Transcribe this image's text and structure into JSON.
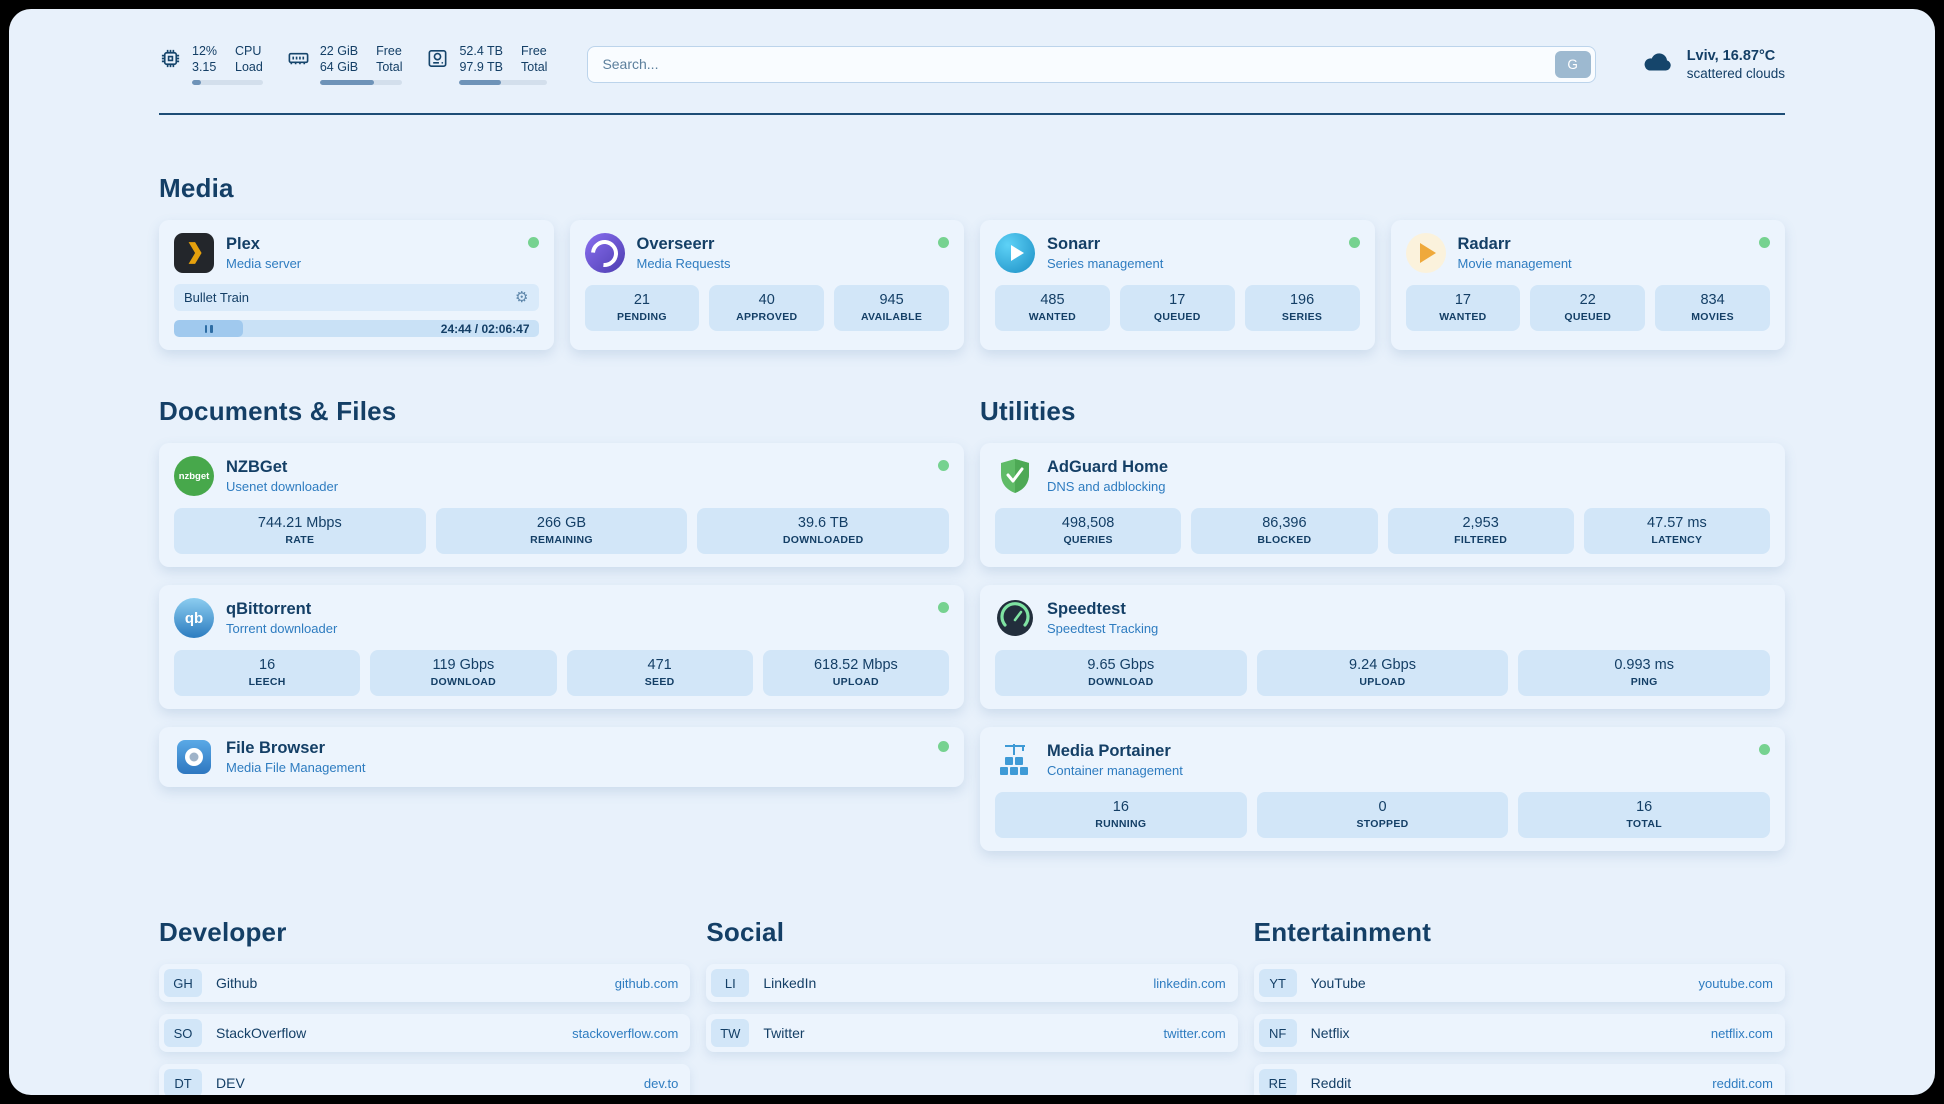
{
  "colors": {
    "page_bg": "#e8f1fb",
    "card_bg": "#ecf4fd",
    "tile_bg": "#d2e6f8",
    "text_dark": "#143f66",
    "subtitle_blue": "#2e7cc0",
    "link_blue": "#2e7cc0",
    "status_green": "#76d290",
    "progress_fill": "#6e93b8",
    "media_fill": "#a0c9ee"
  },
  "icons": {
    "gear": "⚙",
    "nzbget_logo_text": "nzbget",
    "qbittorrent_logo_text": "qb"
  },
  "topbar": {
    "metrics": [
      {
        "id": "cpu",
        "rows": [
          {
            "value": "12%",
            "label": "CPU"
          },
          {
            "value": "3.15",
            "label": "Load"
          }
        ],
        "progress": 12
      },
      {
        "id": "memory",
        "rows": [
          {
            "value": "22 GiB",
            "label": "Free"
          },
          {
            "value": "64 GiB",
            "label": "Total"
          }
        ],
        "progress": 66
      },
      {
        "id": "storage",
        "rows": [
          {
            "value": "52.4 TB",
            "label": "Free"
          },
          {
            "value": "97.9 TB",
            "label": "Total"
          }
        ],
        "progress": 47
      }
    ],
    "search": {
      "placeholder": "Search...",
      "engine_button": "G"
    },
    "weather": {
      "location": "Lviv, 16.87°C",
      "condition": "scattered clouds"
    }
  },
  "sections": {
    "media": {
      "heading": "Media",
      "cards": [
        {
          "title": "Plex",
          "subtitle": "Media server",
          "player": {
            "track": "Bullet Train",
            "time": "24:44 / 02:06:47",
            "progress": 19
          }
        },
        {
          "title": "Overseerr",
          "subtitle": "Media Requests",
          "stats": [
            {
              "value": "21",
              "label": "PENDING"
            },
            {
              "value": "40",
              "label": "APPROVED"
            },
            {
              "value": "945",
              "label": "AVAILABLE"
            }
          ]
        },
        {
          "title": "Sonarr",
          "subtitle": "Series management",
          "stats": [
            {
              "value": "485",
              "label": "WANTED"
            },
            {
              "value": "17",
              "label": "QUEUED"
            },
            {
              "value": "196",
              "label": "SERIES"
            }
          ]
        },
        {
          "title": "Radarr",
          "subtitle": "Movie management",
          "stats": [
            {
              "value": "17",
              "label": "WANTED"
            },
            {
              "value": "22",
              "label": "QUEUED"
            },
            {
              "value": "834",
              "label": "MOVIES"
            }
          ]
        }
      ]
    },
    "documents": {
      "heading": "Documents & Files",
      "cards": [
        {
          "title": "NZBGet",
          "subtitle": "Usenet downloader",
          "stats": [
            {
              "value": "744.21 Mbps",
              "label": "RATE"
            },
            {
              "value": "266 GB",
              "label": "REMAINING"
            },
            {
              "value": "39.6 TB",
              "label": "DOWNLOADED"
            }
          ]
        },
        {
          "title": "qBittorrent",
          "subtitle": "Torrent downloader",
          "stats": [
            {
              "value": "16",
              "label": "LEECH"
            },
            {
              "value": "119 Gbps",
              "label": "DOWNLOAD"
            },
            {
              "value": "471",
              "label": "SEED"
            },
            {
              "value": "618.52 Mbps",
              "label": "UPLOAD"
            }
          ]
        },
        {
          "title": "File Browser",
          "subtitle": "Media File Management"
        }
      ]
    },
    "utilities": {
      "heading": "Utilities",
      "cards": [
        {
          "title": "AdGuard Home",
          "subtitle": "DNS and adblocking",
          "stats": [
            {
              "value": "498,508",
              "label": "QUERIES"
            },
            {
              "value": "86,396",
              "label": "BLOCKED"
            },
            {
              "value": "2,953",
              "label": "FILTERED"
            },
            {
              "value": "47.57 ms",
              "label": "LATENCY"
            }
          ]
        },
        {
          "title": "Speedtest",
          "subtitle": "Speedtest Tracking",
          "stats": [
            {
              "value": "9.65 Gbps",
              "label": "DOWNLOAD"
            },
            {
              "value": "9.24 Gbps",
              "label": "UPLOAD"
            },
            {
              "value": "0.993 ms",
              "label": "PING"
            }
          ]
        },
        {
          "title": "Media Portainer",
          "subtitle": "Container management",
          "stats": [
            {
              "value": "16",
              "label": "RUNNING"
            },
            {
              "value": "0",
              "label": "STOPPED"
            },
            {
              "value": "16",
              "label": "TOTAL"
            }
          ]
        }
      ]
    },
    "bookmarks": {
      "groups": [
        {
          "heading": "Developer",
          "items": [
            {
              "abbr": "GH",
              "name": "Github",
              "url": "github.com"
            },
            {
              "abbr": "SO",
              "name": "StackOverflow",
              "url": "stackoverflow.com"
            },
            {
              "abbr": "DT",
              "name": "DEV",
              "url": "dev.to"
            }
          ]
        },
        {
          "heading": "Social",
          "items": [
            {
              "abbr": "LI",
              "name": "LinkedIn",
              "url": "linkedin.com"
            },
            {
              "abbr": "TW",
              "name": "Twitter",
              "url": "twitter.com"
            }
          ]
        },
        {
          "heading": "Entertainment",
          "items": [
            {
              "abbr": "YT",
              "name": "YouTube",
              "url": "youtube.com"
            },
            {
              "abbr": "NF",
              "name": "Netflix",
              "url": "netflix.com"
            },
            {
              "abbr": "RE",
              "name": "Reddit",
              "url": "reddit.com"
            }
          ]
        }
      ]
    }
  }
}
